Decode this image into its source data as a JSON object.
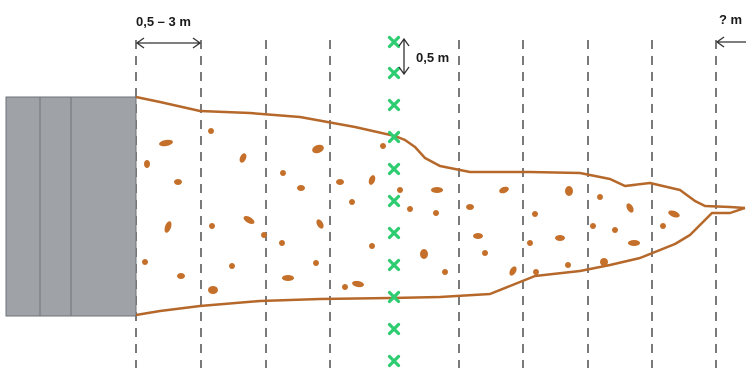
{
  "labels": {
    "spacing": "0,5 – 3 m",
    "marker_spacing": "0,5 m",
    "unknown": "? m"
  },
  "colors": {
    "outline": "#b5682a",
    "grain": "#c4702a",
    "block_fill": "#9fa3a7",
    "block_stroke": "#6e7378",
    "dash": "#7a7a7a",
    "marker": "#2ecc71",
    "arrow": "#333333"
  },
  "icons": {
    "marker": "green-cross-marker"
  }
}
